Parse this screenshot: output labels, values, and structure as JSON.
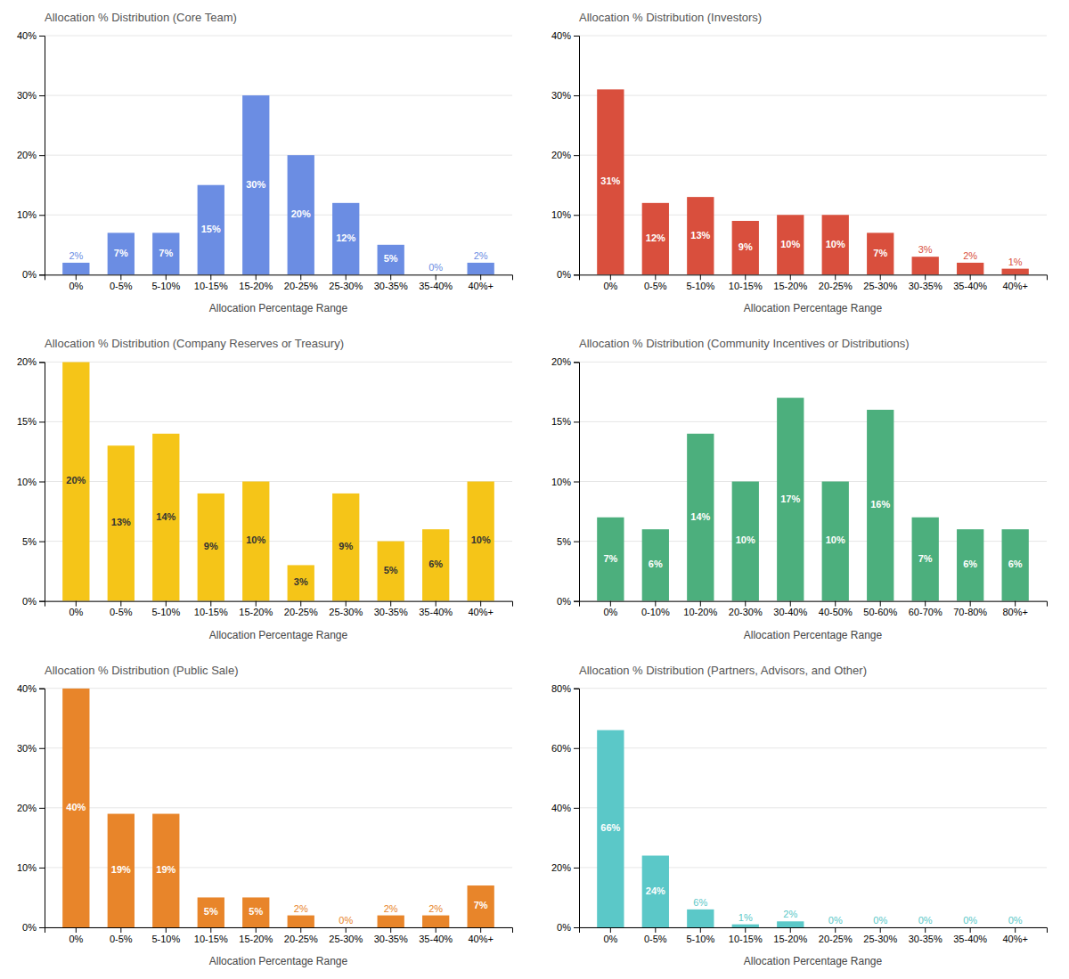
{
  "chart_data": [
    {
      "type": "bar",
      "title": "Allocation % Distribution (Core Team)",
      "xlabel": "Allocation Percentage Range",
      "categories": [
        "0%",
        "0-5%",
        "5-10%",
        "10-15%",
        "15-20%",
        "20-25%",
        "25-30%",
        "30-35%",
        "35-40%",
        "40%+"
      ],
      "values": [
        2,
        7,
        7,
        15,
        30,
        20,
        12,
        5,
        0,
        2
      ],
      "value_labels": [
        "2%",
        "7%",
        "7%",
        "15%",
        "30%",
        "20%",
        "12%",
        "5%",
        "0%",
        "2%"
      ],
      "data_labels": true,
      "color": "#6b8de3",
      "ylim": [
        0,
        40
      ],
      "yticks": [
        {
          "value": 0,
          "label": "0%"
        },
        {
          "value": 10,
          "label": "10%"
        },
        {
          "value": 20,
          "label": "20%"
        },
        {
          "value": 30,
          "label": "30%"
        },
        {
          "value": 40,
          "label": "40%"
        }
      ],
      "grid": true
    },
    {
      "type": "bar",
      "title": "Allocation % Distribution (Investors)",
      "xlabel": "Allocation Percentage Range",
      "categories": [
        "0%",
        "0-5%",
        "5-10%",
        "10-15%",
        "15-20%",
        "20-25%",
        "25-30%",
        "30-35%",
        "35-40%",
        "40%+"
      ],
      "values": [
        31,
        12,
        13,
        9,
        10,
        10,
        7,
        3,
        2,
        1
      ],
      "value_labels": [
        "31%",
        "12%",
        "13%",
        "9%",
        "10%",
        "10%",
        "7%",
        "3%",
        "2%",
        "1%"
      ],
      "data_labels": true,
      "color": "#d94f3d",
      "ylim": [
        0,
        40
      ],
      "yticks": [
        {
          "value": 0,
          "label": "0%"
        },
        {
          "value": 10,
          "label": "10%"
        },
        {
          "value": 20,
          "label": "20%"
        },
        {
          "value": 30,
          "label": "30%"
        },
        {
          "value": 40,
          "label": "40%"
        }
      ],
      "grid": true
    },
    {
      "type": "bar",
      "title": "Allocation % Distribution (Company Reserves or Treasury)",
      "xlabel": "Allocation Percentage Range",
      "categories": [
        "0%",
        "0-5%",
        "5-10%",
        "10-15%",
        "15-20%",
        "20-25%",
        "25-30%",
        "30-35%",
        "35-40%",
        "40%+"
      ],
      "values": [
        20,
        13,
        14,
        9,
        10,
        3,
        9,
        5,
        6,
        10
      ],
      "value_labels": [
        "20%",
        "13%",
        "14%",
        "9%",
        "10%",
        "3%",
        "9%",
        "5%",
        "6%",
        "10%"
      ],
      "data_labels": true,
      "color": "#f5c518",
      "ylim": [
        0,
        20
      ],
      "yticks": [
        {
          "value": 0,
          "label": "0%"
        },
        {
          "value": 5,
          "label": "5%"
        },
        {
          "value": 10,
          "label": "10%"
        },
        {
          "value": 15,
          "label": "15%"
        },
        {
          "value": 20,
          "label": "20%"
        }
      ],
      "grid": true
    },
    {
      "type": "bar",
      "title": "Allocation % Distribution (Community Incentives or Distributions)",
      "xlabel": "Allocation Percentage Range",
      "categories": [
        "0%",
        "0-10%",
        "10-20%",
        "20-30%",
        "30-40%",
        "40-50%",
        "50-60%",
        "60-70%",
        "70-80%",
        "80%+"
      ],
      "values": [
        7,
        6,
        14,
        10,
        17,
        10,
        16,
        7,
        6,
        6
      ],
      "value_labels": [
        "7%",
        "6%",
        "14%",
        "10%",
        "17%",
        "10%",
        "16%",
        "7%",
        "6%",
        "6%"
      ],
      "data_labels": true,
      "color": "#4caf7d",
      "ylim": [
        0,
        20
      ],
      "yticks": [
        {
          "value": 0,
          "label": "0%"
        },
        {
          "value": 5,
          "label": "5%"
        },
        {
          "value": 10,
          "label": "10%"
        },
        {
          "value": 15,
          "label": "15%"
        },
        {
          "value": 20,
          "label": "20%"
        }
      ],
      "grid": true
    },
    {
      "type": "bar",
      "title": "Allocation % Distribution (Public Sale)",
      "xlabel": "Allocation Percentage Range",
      "categories": [
        "0%",
        "0-5%",
        "5-10%",
        "10-15%",
        "15-20%",
        "20-25%",
        "25-30%",
        "30-35%",
        "35-40%",
        "40%+"
      ],
      "values": [
        40,
        19,
        19,
        5,
        5,
        2,
        0,
        2,
        2,
        7
      ],
      "value_labels": [
        "40%",
        "19%",
        "19%",
        "5%",
        "5%",
        "2%",
        "0%",
        "2%",
        "2%",
        "7%"
      ],
      "data_labels": true,
      "color": "#e8852a",
      "ylim": [
        0,
        40
      ],
      "yticks": [
        {
          "value": 0,
          "label": "0%"
        },
        {
          "value": 10,
          "label": "10%"
        },
        {
          "value": 20,
          "label": "20%"
        },
        {
          "value": 30,
          "label": "30%"
        },
        {
          "value": 40,
          "label": "40%"
        }
      ],
      "grid": true
    },
    {
      "type": "bar",
      "title": "Allocation % Distribution (Partners, Advisors, and Other)",
      "xlabel": "Allocation Percentage Range",
      "categories": [
        "0%",
        "0-5%",
        "5-10%",
        "10-15%",
        "15-20%",
        "20-25%",
        "25-30%",
        "30-35%",
        "35-40%",
        "40%+"
      ],
      "values": [
        66,
        24,
        6,
        1,
        2,
        0,
        0,
        0,
        0,
        0
      ],
      "value_labels": [
        "66%",
        "24%",
        "6%",
        "1%",
        "2%",
        "0%",
        "0%",
        "0%",
        "0%",
        "0%"
      ],
      "data_labels": true,
      "color": "#5bc8c8",
      "ylim": [
        0,
        80
      ],
      "yticks": [
        {
          "value": 0,
          "label": "0%"
        },
        {
          "value": 20,
          "label": "20%"
        },
        {
          "value": 40,
          "label": "40%"
        },
        {
          "value": 60,
          "label": "60%"
        },
        {
          "value": 80,
          "label": "80%"
        }
      ],
      "grid": true
    }
  ]
}
